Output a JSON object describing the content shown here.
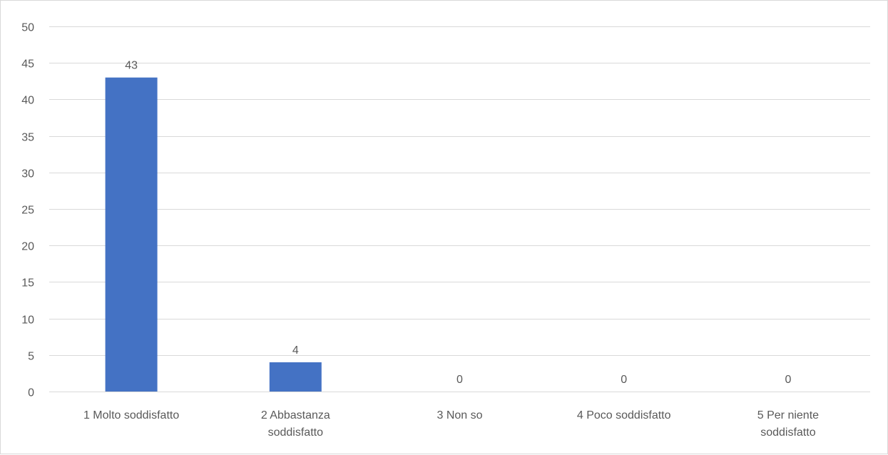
{
  "chart_data": {
    "type": "bar",
    "categories": [
      [
        "1 Molto soddisfatto"
      ],
      [
        "2 Abbastanza",
        "soddisfatto"
      ],
      [
        "3 Non so"
      ],
      [
        "4 Poco soddisfatto"
      ],
      [
        "5 Per niente",
        "soddisfatto"
      ]
    ],
    "values": [
      43,
      4,
      0,
      0,
      0
    ],
    "data_labels": [
      "43",
      "4",
      "0",
      "0",
      "0"
    ],
    "title": "",
    "xlabel": "",
    "ylabel": "",
    "ylim": [
      0,
      50
    ],
    "yticks": [
      0,
      5,
      10,
      15,
      20,
      25,
      30,
      35,
      40,
      45,
      50
    ],
    "grid": true,
    "legend": "none",
    "bar_color": "#4472C4",
    "grid_color": "#D9D9D9",
    "text_color": "#595959"
  }
}
